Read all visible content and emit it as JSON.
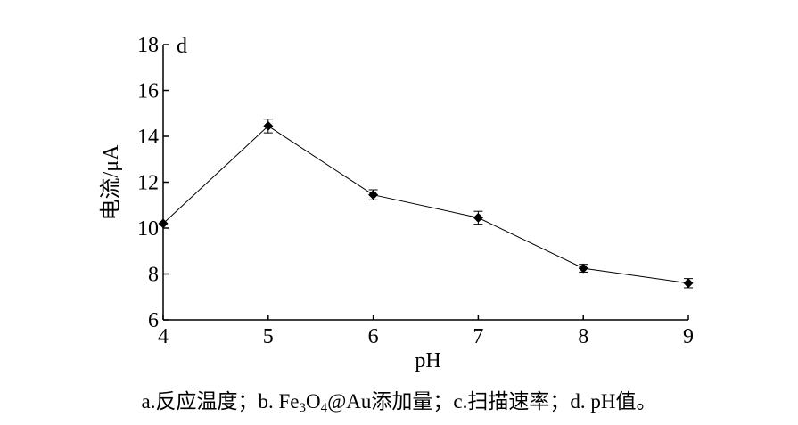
{
  "chart_data": {
    "type": "line",
    "panel_label": "d",
    "xlabel": "pH",
    "ylabel": "电流/μA",
    "x": [
      4,
      5,
      6,
      7,
      8,
      9
    ],
    "xlim": [
      4,
      9
    ],
    "xticks": [
      "4",
      "5",
      "6",
      "7",
      "8",
      "9"
    ],
    "ylim": [
      6,
      18
    ],
    "yticks": [
      "6",
      "8",
      "10",
      "12",
      "14",
      "16",
      "18"
    ],
    "series": [
      {
        "values": [
          10.2,
          14.45,
          11.45,
          10.45,
          8.25,
          7.6
        ],
        "errors": [
          0.0,
          0.3,
          0.22,
          0.28,
          0.17,
          0.2
        ]
      }
    ],
    "marker": "diamond",
    "grid": false
  },
  "caption": {
    "part1": "a.反应温度；b. Fe",
    "sub1": "3",
    "part2": "O",
    "sub2": "4",
    "part3": "@Au添加量；c.扫描速率；d. pH值。"
  }
}
